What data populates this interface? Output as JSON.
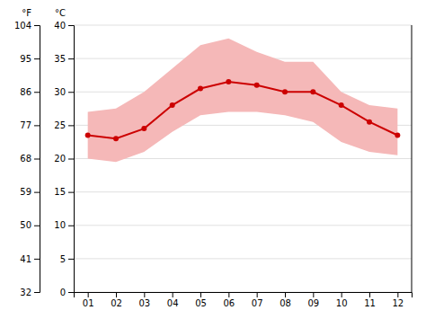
{
  "chart_data": {
    "type": "line",
    "x": [
      1,
      2,
      3,
      4,
      5,
      6,
      7,
      8,
      9,
      10,
      11,
      12
    ],
    "xlim": [
      0.5,
      12.5
    ],
    "xticks": [
      {
        "value": 1,
        "label": "01"
      },
      {
        "value": 2,
        "label": "02"
      },
      {
        "value": 3,
        "label": "03"
      },
      {
        "value": 4,
        "label": "04"
      },
      {
        "value": 5,
        "label": "05"
      },
      {
        "value": 6,
        "label": "06"
      },
      {
        "value": 7,
        "label": "07"
      },
      {
        "value": 8,
        "label": "08"
      },
      {
        "value": 9,
        "label": "09"
      },
      {
        "value": 10,
        "label": "10"
      },
      {
        "value": 11,
        "label": "11"
      },
      {
        "value": 12,
        "label": "12"
      }
    ],
    "ylabel": "°C",
    "ylim": [
      0,
      40
    ],
    "yticks": [
      0,
      5,
      10,
      15,
      20,
      25,
      30,
      35,
      40
    ],
    "y2label": "°F",
    "y2lim": [
      32,
      104
    ],
    "y2ticks": [
      32,
      41,
      50,
      59,
      68,
      77,
      86,
      95,
      104
    ],
    "grid": true,
    "series": [
      {
        "type": "band",
        "color": "#f5b8b8",
        "low": [
          20.0,
          19.5,
          21.0,
          24.0,
          26.5,
          27.0,
          27.0,
          26.5,
          25.5,
          22.5,
          21.0,
          20.5
        ],
        "high": [
          27.0,
          27.5,
          30.0,
          33.5,
          37.0,
          38.0,
          36.0,
          34.5,
          34.5,
          30.0,
          28.0,
          27.5
        ]
      },
      {
        "type": "line",
        "color": "#cc0000",
        "marker": "circle",
        "values": [
          23.5,
          23.0,
          24.5,
          28.0,
          30.5,
          31.5,
          31.0,
          30.0,
          30.0,
          28.0,
          25.5,
          23.5
        ]
      }
    ]
  }
}
